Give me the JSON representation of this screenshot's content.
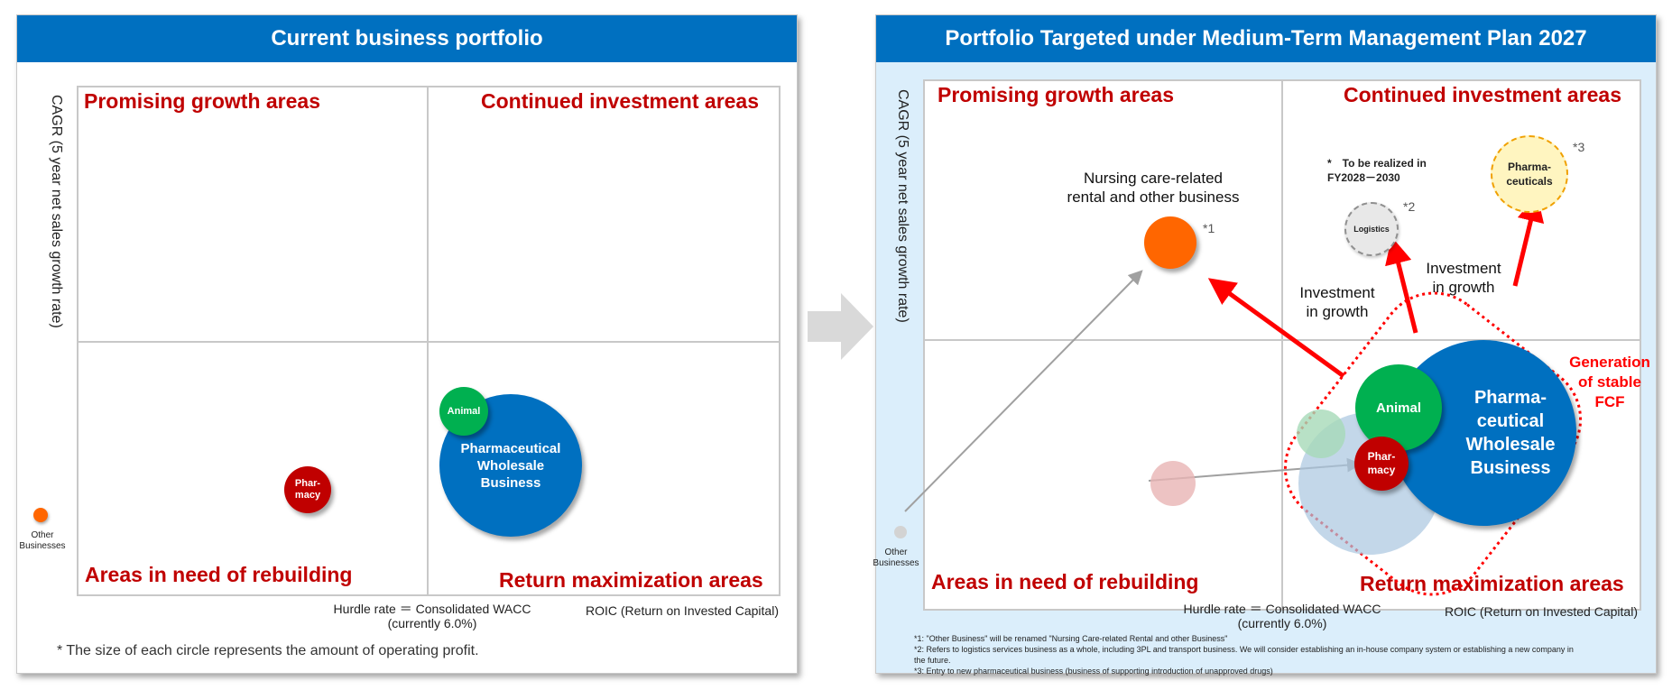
{
  "left_panel": {
    "title": "Current business portfolio",
    "y_axis": "CAGR (5 year net sales growth rate)",
    "quadrants": {
      "top_left": "Promising growth areas",
      "top_right": "Continued investment areas",
      "bottom_left": "Areas in need of rebuilding",
      "bottom_right": "Return maximization areas"
    },
    "hurdle_line1": "Hurdle rate ＝ Consolidated WACC",
    "hurdle_line2": "(currently 6.0%)",
    "x_axis": "ROIC (Return on Invested Capital)",
    "other_businesses": "Other\nBusinesses",
    "bubbles": {
      "pharmacy": "Phar-\nmacy",
      "animal": "Animal",
      "wholesale": "Pharmaceutical\nWholesale\nBusiness"
    },
    "note": "* The size of each circle represents the amount of operating profit."
  },
  "right_panel": {
    "title": "Portfolio Targeted under Medium-Term Management Plan 2027",
    "y_axis": "CAGR (5 year net sales growth rate)",
    "quadrants": {
      "top_left": "Promising growth areas",
      "top_right": "Continued investment areas",
      "bottom_left": "Areas in need of rebuilding",
      "bottom_right": "Return maximization areas"
    },
    "hurdle_line1": "Hurdle rate ＝ Consolidated WACC",
    "hurdle_line2": "(currently 6.0%)",
    "x_axis": "ROIC (Return on Invested Capital)",
    "other_businesses": "Other\nBusinesses",
    "nursing_label": "Nursing care-related\nrental and other business",
    "mark1": "*1",
    "mark2": "*2",
    "mark3": "*3",
    "realized_note": "*　To be realized in\n     FY2028－2030",
    "logistics": "Logistics",
    "pharmaceuticals": "Pharma-\nceuticals",
    "investment_growth_1": "Investment\nin growth",
    "investment_growth_2": "Investment\nin growth",
    "generation_fcf": "Generation\nof stable\nFCF",
    "bubbles": {
      "animal": "Animal",
      "pharmacy": "Phar-\nmacy",
      "wholesale": "Pharma-\nceutical\nWholesale\nBusiness"
    },
    "footnotes": [
      "*1: \"Other Business\" will be renamed \"Nursing Care-related Rental and other Business\"",
      "*2: Refers to logistics services business as a whole, including 3PL and transport business. We will consider establishing an in-house company system or establishing a new company in",
      "       the future.",
      "*3: Entry to new pharmaceutical business (business of supporting introduction of unapproved drugs)"
    ]
  },
  "colors": {
    "header_blue": "#0070c0",
    "quadrant_red": "#c00000",
    "wholesale_blue": "#0070c0",
    "animal_green": "#00b050",
    "pharmacy_red": "#c00000",
    "nursing_orange": "#ff6600",
    "arrow_red": "#ff0000",
    "right_bg": "#dbeefb"
  }
}
